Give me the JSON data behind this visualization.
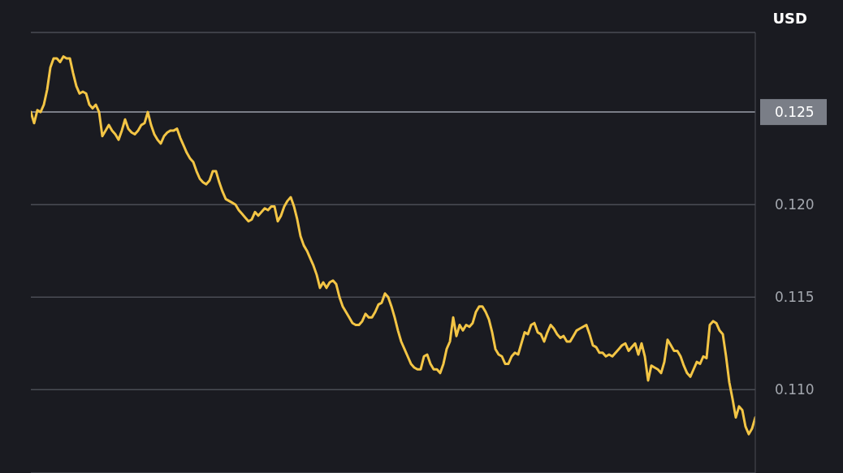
{
  "chart_data": {
    "type": "line",
    "ylabel": "USD",
    "categories": [
      null,
      null,
      null,
      null,
      null,
      null,
      null,
      null,
      null,
      null,
      null,
      null,
      null,
      null,
      null,
      null,
      null,
      null,
      null,
      null,
      null,
      null,
      null,
      null,
      null,
      null,
      null,
      null,
      null,
      null,
      null,
      null,
      null,
      null,
      null,
      null,
      null,
      null,
      null,
      null,
      null,
      null,
      null,
      null,
      null,
      null,
      null,
      null,
      null,
      null,
      null,
      null,
      null,
      null,
      null,
      null,
      null,
      null,
      null,
      null,
      null,
      null,
      null,
      null,
      null,
      null,
      null,
      null,
      null,
      null,
      null,
      null,
      null,
      null,
      null,
      null,
      null,
      null,
      null,
      null,
      null,
      null,
      null,
      null,
      null,
      null,
      null,
      null,
      null,
      null,
      null,
      null,
      null,
      null,
      null,
      null,
      null,
      null,
      null,
      null,
      null,
      null,
      null,
      null,
      null,
      null,
      null,
      null,
      null,
      null,
      null,
      null,
      null,
      null,
      null,
      null,
      null,
      null,
      null,
      null,
      null,
      null,
      null,
      null,
      null,
      null,
      null,
      null,
      null,
      null,
      null,
      null,
      null,
      null,
      null,
      null,
      null,
      null,
      null,
      null,
      null,
      null,
      null,
      null,
      null,
      null,
      null,
      null,
      null,
      null,
      null,
      null,
      null,
      null,
      null,
      null,
      null,
      null,
      null,
      null,
      null,
      null,
      null,
      null,
      null,
      null,
      null,
      null,
      null,
      null,
      null,
      null,
      null,
      null,
      null,
      null,
      null,
      null,
      null,
      null,
      null,
      null,
      null,
      null,
      null,
      null,
      null,
      null,
      null,
      null,
      null,
      null,
      null,
      null,
      null,
      null,
      null,
      null,
      null,
      null,
      null,
      null,
      null,
      null,
      null,
      null,
      null,
      null,
      null,
      null,
      null,
      null,
      null,
      null,
      null,
      null,
      null,
      null,
      null,
      null,
      null,
      null,
      null,
      null
    ],
    "series": [
      {
        "color": "#f3c545",
        "values": [
          0.125,
          0.1244,
          0.1251,
          0.125,
          0.1254,
          0.1262,
          0.1274,
          0.1279,
          0.1279,
          0.1277,
          0.128,
          0.1279,
          0.1279,
          0.1271,
          0.1264,
          0.126,
          0.1261,
          0.126,
          0.1254,
          0.1252,
          0.1254,
          0.125,
          0.1237,
          0.124,
          0.1243,
          0.124,
          0.1238,
          0.1235,
          0.124,
          0.1246,
          0.1241,
          0.1239,
          0.1238,
          0.124,
          0.1243,
          0.1244,
          0.125,
          0.1243,
          0.1238,
          0.1235,
          0.1233,
          0.1237,
          0.1239,
          0.124,
          0.124,
          0.1241,
          0.1236,
          0.1232,
          0.1228,
          0.1225,
          0.1223,
          0.1218,
          0.1214,
          0.1212,
          0.1211,
          0.1213,
          0.1218,
          0.1218,
          0.1212,
          0.1207,
          0.1203,
          0.1202,
          0.1201,
          0.12,
          0.1197,
          0.1195,
          0.1193,
          0.1191,
          0.1192,
          0.1196,
          0.1194,
          0.1196,
          0.1198,
          0.1197,
          0.1199,
          0.1199,
          0.1191,
          0.1194,
          0.1199,
          0.1202,
          0.1204,
          0.1199,
          0.1192,
          0.1183,
          0.1178,
          0.1175,
          0.1171,
          0.1167,
          0.1162,
          0.1155,
          0.1158,
          0.1155,
          0.1158,
          0.1159,
          0.1157,
          0.115,
          0.1145,
          0.1142,
          0.1139,
          0.1136,
          0.1135,
          0.1135,
          0.1137,
          0.1141,
          0.1139,
          0.1139,
          0.1142,
          0.1146,
          0.1147,
          0.1152,
          0.115,
          0.1145,
          0.1139,
          0.1132,
          0.1126,
          0.1122,
          0.1118,
          0.1114,
          0.1112,
          0.1111,
          0.1111,
          0.1118,
          0.1119,
          0.1114,
          0.1111,
          0.1111,
          0.1109,
          0.1114,
          0.1122,
          0.1126,
          0.1139,
          0.1129,
          0.1135,
          0.1132,
          0.1135,
          0.1134,
          0.1136,
          0.1142,
          0.1145,
          0.1145,
          0.1142,
          0.1138,
          0.1131,
          0.1122,
          0.1119,
          0.1118,
          0.1114,
          0.1114,
          0.1118,
          0.112,
          0.1119,
          0.1125,
          0.1131,
          0.113,
          0.1135,
          0.1136,
          0.1131,
          0.113,
          0.1126,
          0.1131,
          0.1135,
          0.1133,
          0.113,
          0.1128,
          0.1129,
          0.1126,
          0.1126,
          0.1129,
          0.1132,
          0.1133,
          0.1134,
          0.1135,
          0.113,
          0.1124,
          0.1123,
          0.112,
          0.112,
          0.1118,
          0.1119,
          0.1118,
          0.112,
          0.1122,
          0.1124,
          0.1125,
          0.1121,
          0.1123,
          0.1125,
          0.1119,
          0.1125,
          0.1118,
          0.1105,
          0.1113,
          0.1112,
          0.1111,
          0.1109,
          0.1115,
          0.1127,
          0.1124,
          0.1121,
          0.1121,
          0.1118,
          0.1113,
          0.1109,
          0.1107,
          0.1111,
          0.1115,
          0.1114,
          0.1118,
          0.1117,
          0.1135,
          0.1137,
          0.1136,
          0.1132,
          0.113,
          0.1118,
          0.1104,
          0.1095,
          0.1085,
          0.1091,
          0.1089,
          0.108,
          0.1076,
          0.1079,
          0.1085
        ]
      }
    ],
    "ylim": [
      0.1055,
      0.1293
    ],
    "yticks": [
      {
        "value": 0.11,
        "label": "0.110"
      },
      0.115,
      {
        "value": 0.12,
        "label": "0.120"
      },
      0.125
    ],
    "grid": "y",
    "marker": "none",
    "line_style": "solid",
    "ref_lines": [
      {
        "axis": "y",
        "value": 0.125,
        "color": "#7a7e87"
      }
    ]
  }
}
